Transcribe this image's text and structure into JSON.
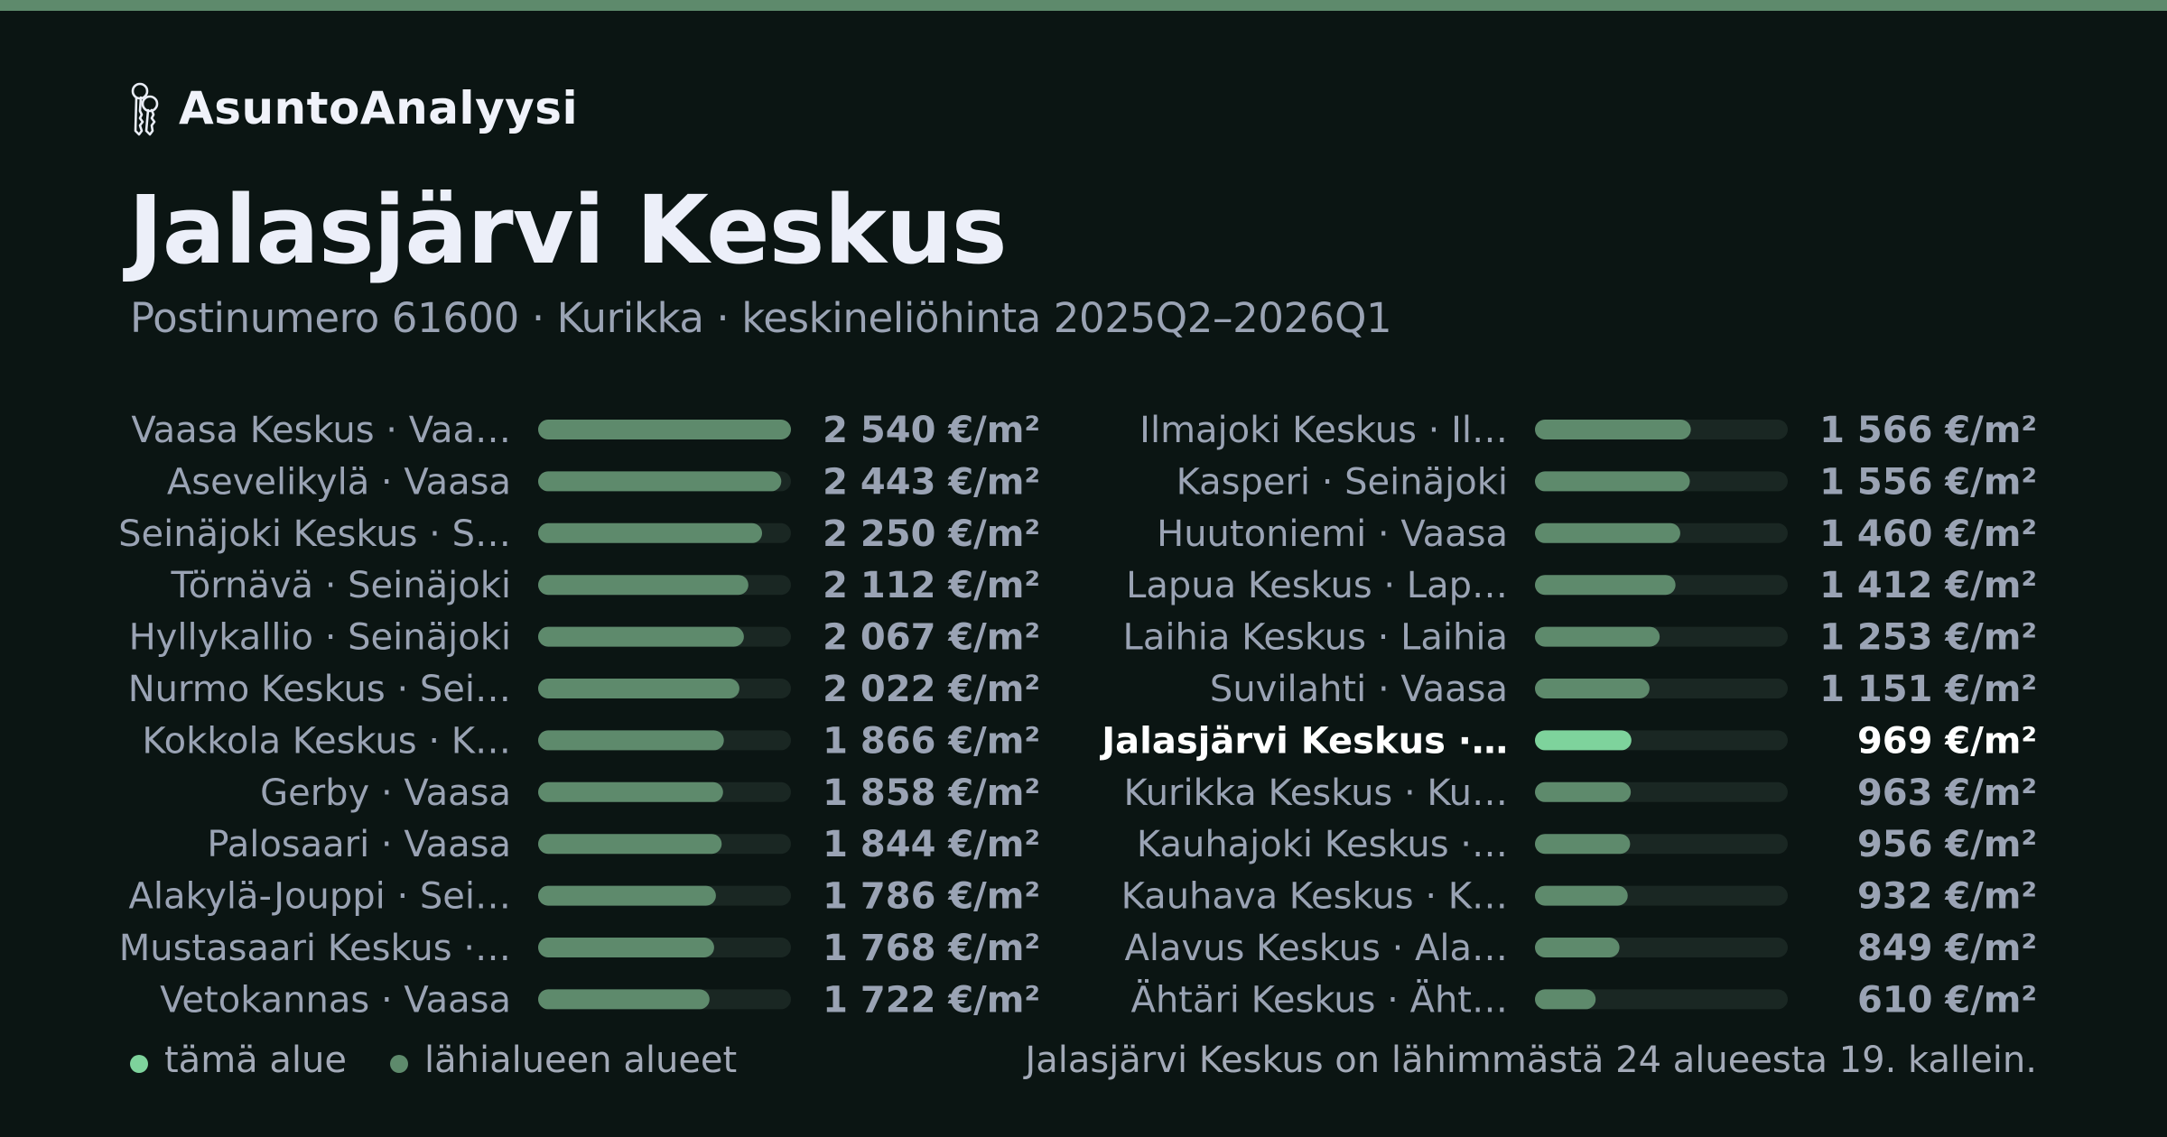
{
  "app": {
    "brand": "AsuntoAnalyysi",
    "brand_icon": "keys-icon"
  },
  "header": {
    "title": "Jalasjärvi Keskus",
    "subtitle": "Postinumero 61600 · Kurikka · keskineliöhinta 2025Q2–2026Q1"
  },
  "colors": {
    "background": "#0b1513",
    "accent": "#5e8a6c",
    "highlight": "#7ed39c",
    "track": "#1a2723",
    "label": "#9aa3b4",
    "highlight_text": "#ffffff"
  },
  "chart_data": {
    "type": "bar",
    "orientation": "horizontal",
    "unit": "€/m²",
    "xlim": [
      0,
      2540
    ],
    "highlight_index": 18,
    "categories": [
      "Vaasa Keskus · Vaa…",
      "Asevelikylä · Vaasa",
      "Seinäjoki Keskus · S…",
      "Törnävä · Seinäjoki",
      "Hyllykallio · Seinäjoki",
      "Nurmo Keskus · Sei…",
      "Kokkola Keskus · K…",
      "Gerby · Vaasa",
      "Palosaari · Vaasa",
      "Alakylä-Jouppi · Sei…",
      "Mustasaari Keskus ·…",
      "Vetokannas · Vaasa",
      "Ilmajoki Keskus · Il…",
      "Kasperi · Seinäjoki",
      "Huutoniemi · Vaasa",
      "Lapua Keskus · Lap…",
      "Laihia Keskus · Laihia",
      "Suvilahti · Vaasa",
      "Jalasjärvi Keskus ·…",
      "Kurikka Keskus · Ku…",
      "Kauhajoki Keskus ·…",
      "Kauhava Keskus · K…",
      "Alavus Keskus · Ala…",
      "Ähtäri Keskus · Äht…"
    ],
    "values": [
      2540,
      2443,
      2250,
      2112,
      2067,
      2022,
      1866,
      1858,
      1844,
      1786,
      1768,
      1722,
      1566,
      1556,
      1460,
      1412,
      1253,
      1151,
      969,
      963,
      956,
      932,
      849,
      610
    ],
    "value_labels": [
      "2 540 €/m²",
      "2 443 €/m²",
      "2 250 €/m²",
      "2 112 €/m²",
      "2 067 €/m²",
      "2 022 €/m²",
      "1 866 €/m²",
      "1 858 €/m²",
      "1 844 €/m²",
      "1 786 €/m²",
      "1 768 €/m²",
      "1 722 €/m²",
      "1 566 €/m²",
      "1 556 €/m²",
      "1 460 €/m²",
      "1 412 €/m²",
      "1 253 €/m²",
      "1 151 €/m²",
      "969 €/m²",
      "963 €/m²",
      "956 €/m²",
      "932 €/m²",
      "849 €/m²",
      "610 €/m²"
    ],
    "columns": 2,
    "legend_position": "bottom-left"
  },
  "legend": {
    "this_area": "tämä alue",
    "nearby_areas": "lähialueen alueet"
  },
  "footer": {
    "rank_note": "Jalasjärvi Keskus on lähimmästä 24 alueesta 19. kallein."
  }
}
